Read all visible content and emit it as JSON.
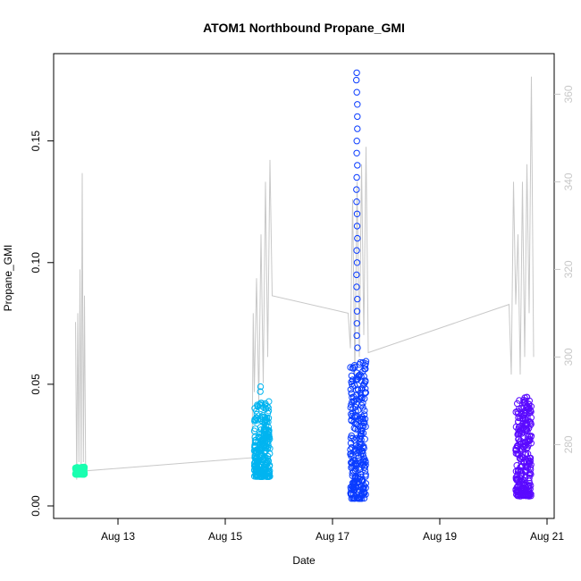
{
  "chart_data": {
    "type": "scatter",
    "title": "ATOM1 Northbound Propane_GMI",
    "xlabel": "Date",
    "ylabel": "Propane_GMI",
    "xlim": [
      "2023-08-12",
      "2023-08-21"
    ],
    "ylim": [
      0,
      0.18
    ],
    "y2lim": [
      266,
      366
    ],
    "x_ticks": [
      {
        "label": "Aug 13",
        "date": "2023-08-13"
      },
      {
        "label": "Aug 15",
        "date": "2023-08-15"
      },
      {
        "label": "Aug 17",
        "date": "2023-08-17"
      },
      {
        "label": "Aug 19",
        "date": "2023-08-19"
      },
      {
        "label": "Aug 21",
        "date": "2023-08-21"
      }
    ],
    "y_ticks": [
      {
        "label": "0.00",
        "value": 0
      },
      {
        "label": "0.05",
        "value": 0.05
      },
      {
        "label": "0.10",
        "value": 0.1
      },
      {
        "label": "0.15",
        "value": 0.15
      }
    ],
    "y2_ticks": [
      {
        "label": "280",
        "value": 280
      },
      {
        "label": "300",
        "value": 300
      },
      {
        "label": "320",
        "value": 320
      },
      {
        "label": "340",
        "value": 340
      },
      {
        "label": "360",
        "value": 360
      }
    ],
    "grid": false,
    "line_color": "#c8c8c8",
    "clusters": [
      {
        "color": "#1affb0",
        "x_start": "2023-08-12 05:00",
        "x_end": "2023-08-12 09:00",
        "y_min": 0.013,
        "y_max": 0.016,
        "outliers": []
      },
      {
        "color": "#00b4f0",
        "x_start": "2023-08-15 13:00",
        "x_end": "2023-08-15 20:00",
        "y_min": 0.012,
        "y_max": 0.043,
        "outliers": [
          0.049,
          0.047
        ]
      },
      {
        "color": "#0a3cff",
        "x_start": "2023-08-17 08:00",
        "x_end": "2023-08-17 15:00",
        "y_min": 0.003,
        "y_max": 0.06,
        "outliers": [
          0.178,
          0.175,
          0.17,
          0.165,
          0.16,
          0.155,
          0.15,
          0.145,
          0.14,
          0.135,
          0.13,
          0.125,
          0.12,
          0.115,
          0.11,
          0.105,
          0.1,
          0.095,
          0.09,
          0.085,
          0.08,
          0.075,
          0.07,
          0.065
        ]
      },
      {
        "color": "#5a0aff",
        "x_start": "2023-08-20 10:00",
        "x_end": "2023-08-20 17:00",
        "y_min": 0.004,
        "y_max": 0.046,
        "outliers": []
      }
    ],
    "secondary_line": [
      {
        "x": "2023-08-12 05:00",
        "y": 308
      },
      {
        "x": "2023-08-12 05:30",
        "y": 272
      },
      {
        "x": "2023-08-12 06:00",
        "y": 310
      },
      {
        "x": "2023-08-12 06:30",
        "y": 276
      },
      {
        "x": "2023-08-12 07:00",
        "y": 320
      },
      {
        "x": "2023-08-12 07:30",
        "y": 274
      },
      {
        "x": "2023-08-12 08:00",
        "y": 342
      },
      {
        "x": "2023-08-12 08:30",
        "y": 276
      },
      {
        "x": "2023-08-12 09:00",
        "y": 314
      },
      {
        "x": "2023-08-12 09:30",
        "y": 274
      },
      {
        "x": "2023-08-15 12:00",
        "y": 277
      },
      {
        "x": "2023-08-15 12:30",
        "y": 310
      },
      {
        "x": "2023-08-15 13:00",
        "y": 292
      },
      {
        "x": "2023-08-15 14:00",
        "y": 318
      },
      {
        "x": "2023-08-15 15:00",
        "y": 290
      },
      {
        "x": "2023-08-15 16:00",
        "y": 328
      },
      {
        "x": "2023-08-15 17:00",
        "y": 294
      },
      {
        "x": "2023-08-15 18:00",
        "y": 340
      },
      {
        "x": "2023-08-15 19:00",
        "y": 300
      },
      {
        "x": "2023-08-15 20:00",
        "y": 345
      },
      {
        "x": "2023-08-15 21:00",
        "y": 314
      },
      {
        "x": "2023-08-17 07:00",
        "y": 310
      },
      {
        "x": "2023-08-17 08:00",
        "y": 302
      },
      {
        "x": "2023-08-17 09:00",
        "y": 336
      },
      {
        "x": "2023-08-17 10:00",
        "y": 296
      },
      {
        "x": "2023-08-17 11:00",
        "y": 340
      },
      {
        "x": "2023-08-17 12:00",
        "y": 300
      },
      {
        "x": "2023-08-17 13:00",
        "y": 344
      },
      {
        "x": "2023-08-17 14:00",
        "y": 305
      },
      {
        "x": "2023-08-17 15:00",
        "y": 348
      },
      {
        "x": "2023-08-17 16:00",
        "y": 301
      },
      {
        "x": "2023-08-20 07:00",
        "y": 312
      },
      {
        "x": "2023-08-20 08:00",
        "y": 296
      },
      {
        "x": "2023-08-20 09:00",
        "y": 340
      },
      {
        "x": "2023-08-20 10:00",
        "y": 312
      },
      {
        "x": "2023-08-20 11:00",
        "y": 328
      },
      {
        "x": "2023-08-20 12:00",
        "y": 296
      },
      {
        "x": "2023-08-20 13:00",
        "y": 340
      },
      {
        "x": "2023-08-20 14:00",
        "y": 300
      },
      {
        "x": "2023-08-20 15:00",
        "y": 344
      },
      {
        "x": "2023-08-20 16:00",
        "y": 310
      },
      {
        "x": "2023-08-20 17:00",
        "y": 364
      },
      {
        "x": "2023-08-20 18:00",
        "y": 300
      }
    ]
  }
}
